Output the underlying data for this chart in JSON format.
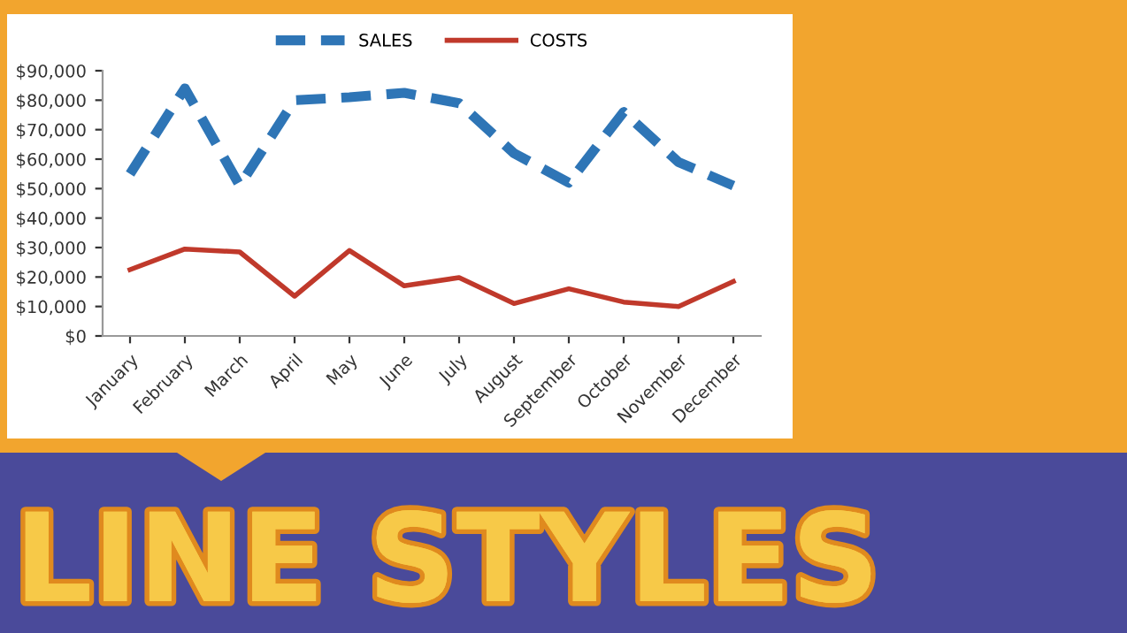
{
  "chart_data": {
    "type": "line",
    "categories": [
      "January",
      "February",
      "March",
      "April",
      "May",
      "June",
      "July",
      "August",
      "September",
      "October",
      "November",
      "December"
    ],
    "series": [
      {
        "name": "SALES",
        "color": "#2e75b6",
        "line_style": "dashed",
        "values": [
          55000,
          84000,
          51000,
          80000,
          81000,
          82500,
          79000,
          62000,
          52000,
          76000,
          59000,
          51000
        ]
      },
      {
        "name": "COSTS",
        "color": "#c0392b",
        "line_style": "solid",
        "values": [
          22500,
          29500,
          28500,
          13500,
          29000,
          17000,
          19800,
          11000,
          16000,
          11500,
          10000,
          18500
        ]
      }
    ],
    "ylim": [
      0,
      90000
    ],
    "yticks": [
      {
        "value": 0,
        "label": "$0"
      },
      {
        "value": 10000,
        "label": "$10,000"
      },
      {
        "value": 20000,
        "label": "$20,000"
      },
      {
        "value": 30000,
        "label": "$30,000"
      },
      {
        "value": 40000,
        "label": "$40,000"
      },
      {
        "value": 50000,
        "label": "$50,000"
      },
      {
        "value": 60000,
        "label": "$60,000"
      },
      {
        "value": 70000,
        "label": "$70,000"
      },
      {
        "value": 80000,
        "label": "$80,000"
      },
      {
        "value": 90000,
        "label": "$90,000"
      }
    ],
    "grid": false,
    "legend": "top",
    "annotations": [
      "LINE STYLES"
    ]
  }
}
